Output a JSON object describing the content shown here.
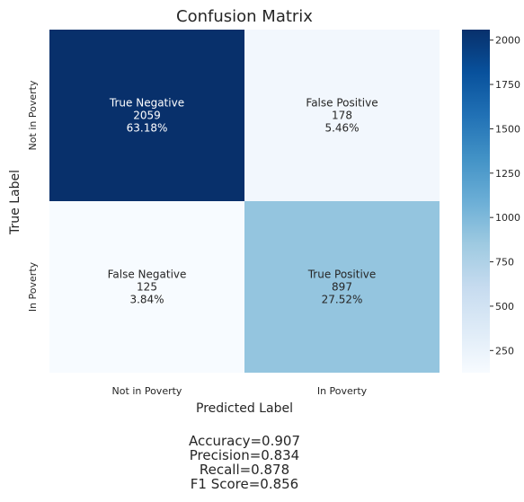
{
  "chart_data": {
    "type": "heatmap",
    "title": "Confusion Matrix",
    "xlabel": "Predicted Label",
    "ylabel": "True Label",
    "x_categories": [
      "Not in Poverty",
      "In Poverty"
    ],
    "y_categories": [
      "Not in Poverty",
      "In Poverty"
    ],
    "cells": [
      [
        {
          "label": "True Negative",
          "value": 2059,
          "percent": "63.18%"
        },
        {
          "label": "False Positive",
          "value": 178,
          "percent": "5.46%"
        }
      ],
      [
        {
          "label": "False Negative",
          "value": 125,
          "percent": "3.84%"
        },
        {
          "label": "True Positive",
          "value": 897,
          "percent": "27.52%"
        }
      ]
    ],
    "colormap": "Blues",
    "color_range": [
      125,
      2059
    ],
    "colorbar_ticks": [
      250,
      500,
      750,
      1000,
      1250,
      1500,
      1750,
      2000
    ],
    "metrics": [
      "Accuracy=0.907",
      "Precision=0.834",
      "Recall=0.878",
      "F1 Score=0.856"
    ]
  }
}
